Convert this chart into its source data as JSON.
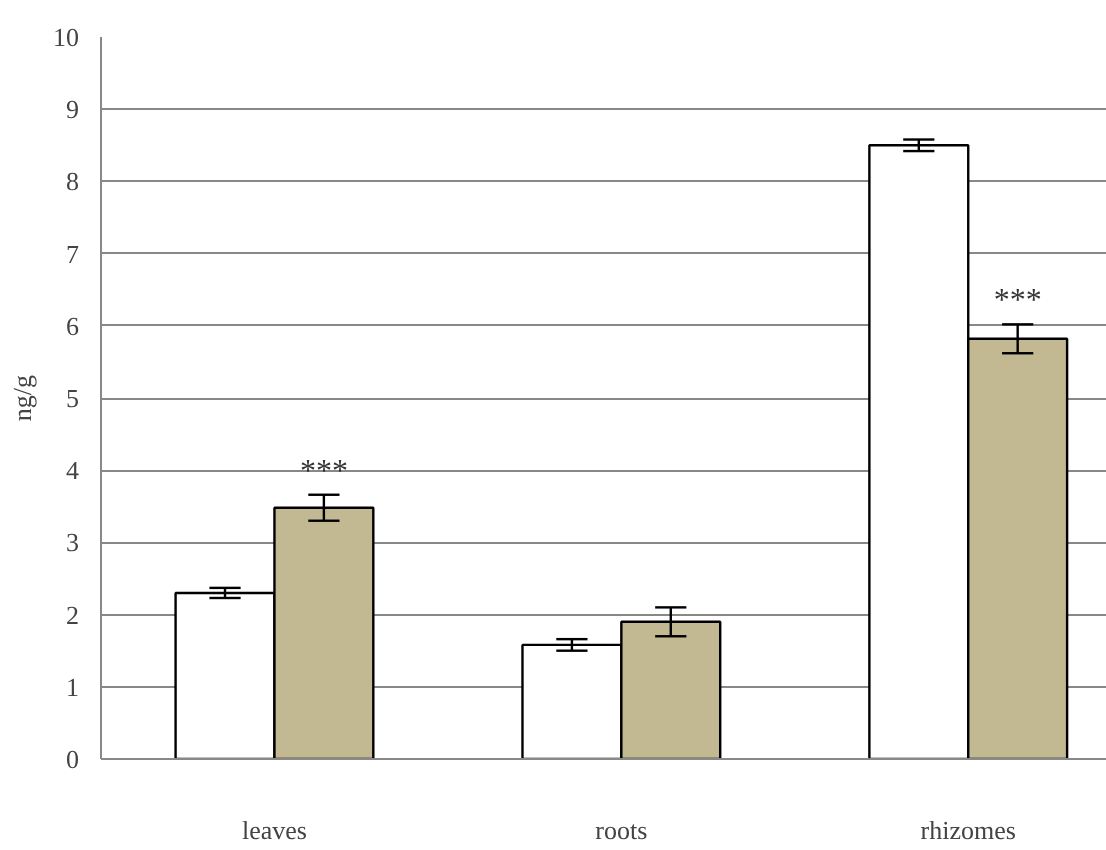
{
  "chart_data": {
    "type": "bar",
    "ylabel": "ng/g",
    "categories": [
      "leaves",
      "roots",
      "rhizomes"
    ],
    "series": [
      {
        "color": "#ffffff",
        "values": [
          2.3,
          1.58,
          8.5
        ],
        "errors": [
          0.07,
          0.08,
          0.08
        ]
      },
      {
        "color": "#c2b993",
        "values": [
          3.48,
          1.9,
          5.82
        ],
        "errors": [
          0.18,
          0.2,
          0.2
        ]
      }
    ],
    "ylim": [
      0,
      10
    ],
    "yticks": [
      0,
      1,
      2,
      3,
      4,
      5,
      6,
      7,
      8,
      9,
      10
    ],
    "grid": "y",
    "annotations": [
      {
        "text": "***",
        "x": "leaves",
        "y": 3.48
      },
      {
        "text": "***",
        "x": "rhizomes",
        "y": 5.82
      }
    ]
  }
}
